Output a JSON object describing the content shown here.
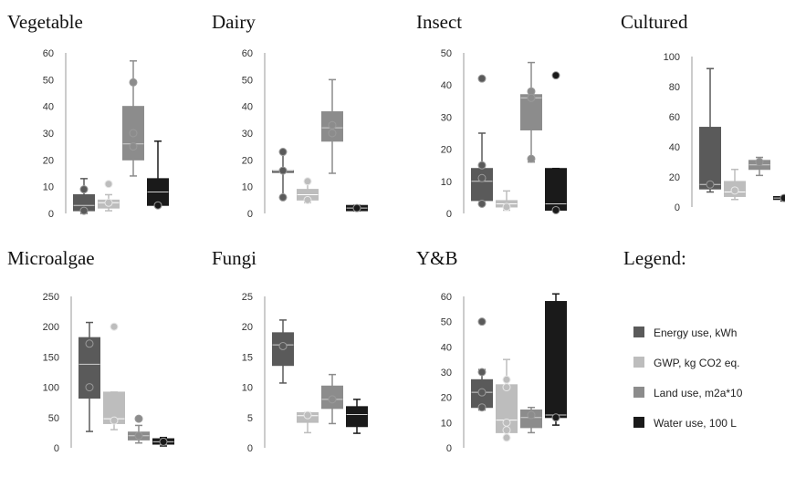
{
  "colors": {
    "energy": "#5a5a5a",
    "gwp": "#bdbdbd",
    "land": "#8c8c8c",
    "water": "#1a1a1a",
    "axis": "#9a9a9a"
  },
  "legend": {
    "title": "Legend:",
    "items": [
      {
        "key": "energy",
        "label": "Energy use, kWh"
      },
      {
        "key": "gwp",
        "label": "GWP, kg CO2 eq."
      },
      {
        "key": "land",
        "label": "Land use, m2a*10"
      },
      {
        "key": "water",
        "label": "Water use, 100 L"
      }
    ]
  },
  "chart_data": [
    {
      "type": "boxplot",
      "title": "Vegetable",
      "ylim": [
        0,
        60
      ],
      "yticks": [
        0,
        10,
        20,
        30,
        40,
        50,
        60
      ],
      "series": [
        {
          "key": "energy",
          "min": 0,
          "q1": 1,
          "median": 3,
          "q3": 7,
          "max": 13,
          "points": [
            9,
            1
          ]
        },
        {
          "key": "gwp",
          "min": 1,
          "q1": 2,
          "median": 4,
          "q3": 5,
          "max": 7,
          "points": [
            11,
            4
          ]
        },
        {
          "key": "land",
          "min": 14,
          "q1": 20,
          "median": 26,
          "q3": 40,
          "max": 57,
          "points": [
            49,
            30,
            25
          ]
        },
        {
          "key": "water",
          "min": 3,
          "q1": 3,
          "median": 8,
          "q3": 13,
          "max": 27,
          "points": [
            3
          ]
        }
      ]
    },
    {
      "type": "boxplot",
      "title": "Dairy",
      "ylim": [
        0,
        60
      ],
      "yticks": [
        0,
        10,
        20,
        30,
        40,
        50,
        60
      ],
      "series": [
        {
          "key": "energy",
          "min": 6,
          "q1": 16,
          "median": 16,
          "q3": 16,
          "max": 23,
          "points": [
            23,
            6,
            16
          ]
        },
        {
          "key": "gwp",
          "min": 4,
          "q1": 5,
          "median": 7,
          "q3": 9,
          "max": 12,
          "points": [
            12,
            5
          ]
        },
        {
          "key": "land",
          "min": 15,
          "q1": 27,
          "median": 32,
          "q3": 38,
          "max": 50,
          "points": [
            33,
            30
          ]
        },
        {
          "key": "water",
          "min": 1,
          "q1": 1,
          "median": 2,
          "q3": 3,
          "max": 3,
          "points": [
            2
          ]
        }
      ]
    },
    {
      "type": "boxplot",
      "title": "Insect",
      "ylim": [
        0,
        50
      ],
      "yticks": [
        0,
        10,
        20,
        30,
        40,
        50
      ],
      "series": [
        {
          "key": "energy",
          "min": 3,
          "q1": 4,
          "median": 10,
          "q3": 14,
          "max": 25,
          "points": [
            42,
            15,
            11,
            3
          ]
        },
        {
          "key": "gwp",
          "min": 1,
          "q1": 2,
          "median": 3,
          "q3": 4,
          "max": 7,
          "points": [
            2
          ]
        },
        {
          "key": "land",
          "min": 16,
          "q1": 26,
          "median": 36,
          "q3": 37,
          "max": 47,
          "points": [
            38,
            36,
            17
          ]
        },
        {
          "key": "water",
          "min": 1,
          "q1": 1,
          "median": 3,
          "q3": 14,
          "max": 14,
          "points": [
            43,
            1
          ]
        }
      ]
    },
    {
      "type": "boxplot",
      "title": "Cultured",
      "ylim": [
        0,
        100
      ],
      "yticks": [
        0,
        20,
        40,
        60,
        80,
        100
      ],
      "series": [
        {
          "key": "energy",
          "min": 10,
          "q1": 12,
          "median": 15,
          "q3": 53,
          "max": 92,
          "points": [
            15
          ]
        },
        {
          "key": "gwp",
          "min": 5,
          "q1": 7,
          "median": 10,
          "q3": 17,
          "max": 25,
          "points": [
            11
          ]
        },
        {
          "key": "land",
          "min": 21,
          "q1": 25,
          "median": 28,
          "q3": 31,
          "max": 33,
          "points": [
            30
          ]
        },
        {
          "key": "water",
          "min": 4,
          "q1": 5,
          "median": 6,
          "q3": 7,
          "max": 7,
          "points": [
            6
          ]
        }
      ]
    },
    {
      "type": "boxplot",
      "title": "Microalgae",
      "ylim": [
        0,
        250
      ],
      "yticks": [
        0,
        50,
        100,
        150,
        200,
        250
      ],
      "series": [
        {
          "key": "energy",
          "min": 27,
          "q1": 82,
          "median": 138,
          "q3": 182,
          "max": 207,
          "points": [
            172,
            100
          ]
        },
        {
          "key": "gwp",
          "min": 30,
          "q1": 40,
          "median": 48,
          "q3": 92,
          "max": 92,
          "points": [
            200,
            45
          ]
        },
        {
          "key": "land",
          "min": 8,
          "q1": 13,
          "median": 20,
          "q3": 26,
          "max": 37,
          "points": [
            48,
            20
          ]
        },
        {
          "key": "water",
          "min": 3,
          "q1": 6,
          "median": 10,
          "q3": 15,
          "max": 17,
          "points": [
            10
          ]
        }
      ]
    },
    {
      "type": "boxplot",
      "title": "Fungi",
      "ylim": [
        0,
        25
      ],
      "yticks": [
        0,
        5,
        10,
        15,
        20,
        25
      ],
      "series": [
        {
          "key": "energy",
          "min": 10.7,
          "q1": 13.6,
          "median": 17,
          "q3": 19,
          "max": 21.1,
          "points": [
            16.8
          ]
        },
        {
          "key": "gwp",
          "min": 2.5,
          "q1": 4.2,
          "median": 5.3,
          "q3": 5.8,
          "max": 5.8,
          "points": [
            5.4
          ]
        },
        {
          "key": "land",
          "min": 4,
          "q1": 6.5,
          "median": 8,
          "q3": 10.2,
          "max": 12.1,
          "points": [
            8
          ]
        },
        {
          "key": "water",
          "min": 2.4,
          "q1": 3.5,
          "median": 5.5,
          "q3": 6.8,
          "max": 8,
          "points": []
        }
      ]
    },
    {
      "type": "boxplot",
      "title": "Y&B",
      "ylim": [
        0,
        60
      ],
      "yticks": [
        0,
        10,
        20,
        30,
        40,
        50,
        60
      ],
      "series": [
        {
          "key": "energy",
          "min": 15,
          "q1": 16,
          "median": 22,
          "q3": 27,
          "max": 31,
          "points": [
            50,
            30,
            22,
            16
          ]
        },
        {
          "key": "gwp",
          "min": 4,
          "q1": 6,
          "median": 11,
          "q3": 25,
          "max": 35,
          "points": [
            27,
            24,
            10,
            7,
            4
          ]
        },
        {
          "key": "land",
          "min": 6,
          "q1": 8,
          "median": 12,
          "q3": 15,
          "max": 16,
          "points": [
            13
          ]
        },
        {
          "key": "water",
          "min": 9,
          "q1": 12,
          "median": 13,
          "q3": 58,
          "max": 61,
          "points": [
            12
          ]
        }
      ]
    }
  ]
}
